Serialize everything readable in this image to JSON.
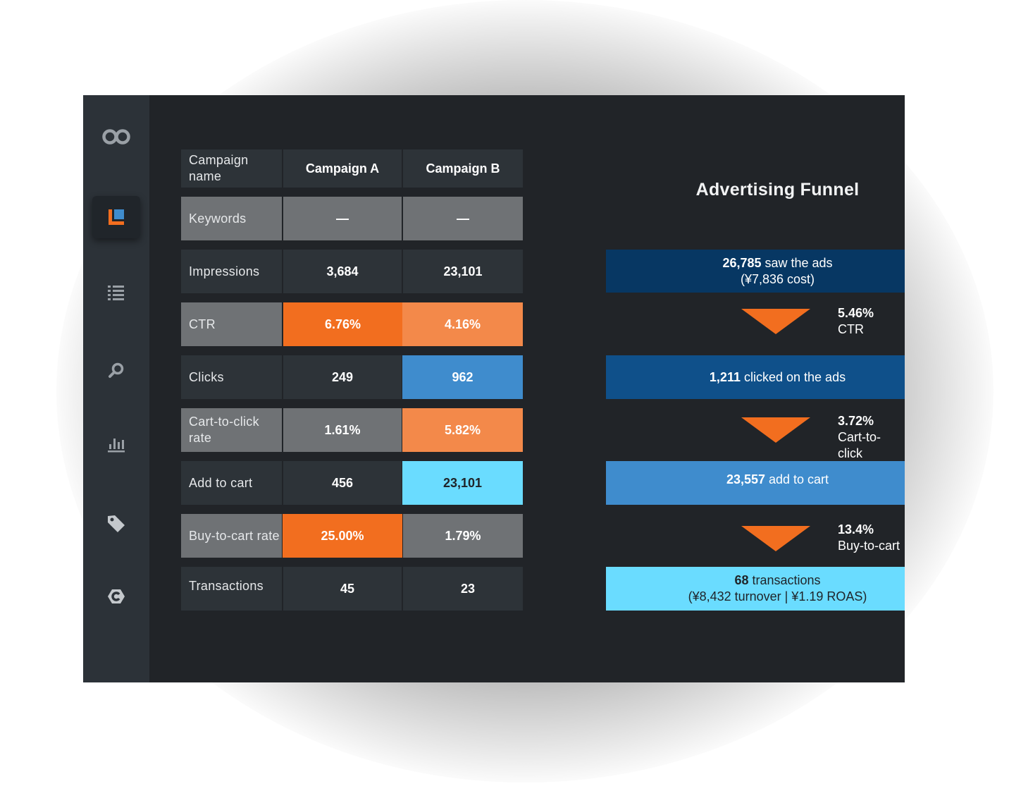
{
  "sidebar": {
    "icons": [
      "logo-link-icon",
      "report-icon",
      "list-icon",
      "search-icon",
      "bar-chart-icon",
      "tag-icon",
      "c-logo-icon"
    ]
  },
  "table": {
    "header": {
      "label": "Campaign name",
      "a": "Campaign A",
      "b": "Campaign B"
    },
    "rows": [
      {
        "label": "Keywords",
        "a": "—",
        "b": "—"
      },
      {
        "label": "Impressions",
        "a": "3,684",
        "b": "23,101"
      },
      {
        "label": "CTR",
        "a": "6.76%",
        "b": "4.16%"
      },
      {
        "label": "Clicks",
        "a": "249",
        "b": "962"
      },
      {
        "label": "Cart-to-click rate",
        "a": "1.61%",
        "b": "5.82%"
      },
      {
        "label": "Add to cart",
        "a": "456",
        "b": "23,101"
      },
      {
        "label": "Buy-to-cart rate",
        "a": "25.00%",
        "b": "1.79%"
      },
      {
        "label": "Transactions",
        "a": "45",
        "b": "23"
      }
    ]
  },
  "funnel": {
    "title": "Advertising Funnel",
    "stages": [
      {
        "value": "26,785",
        "text": " saw the ads",
        "sub": "(¥7,836 cost)",
        "color": "#073763"
      },
      {
        "value": "1,211",
        "text": " clicked on the ads",
        "color": "#0f508a"
      },
      {
        "value": "23,557",
        "text": " add to cart",
        "color": "#3f8ccd"
      },
      {
        "value": "68",
        "text": " transactions",
        "sub": "(¥8,432 turnover | ¥1.19 ROAS)",
        "color": "#6adcff"
      }
    ],
    "rates": [
      {
        "pct": "5.46%",
        "name": "CTR"
      },
      {
        "pct": "3.72%",
        "name": "Cart-to-click"
      },
      {
        "pct": "13.4%",
        "name": "Buy-to-cart"
      }
    ]
  },
  "colors": {
    "background": "#212428",
    "sidebar": "#2c3238",
    "orange": "#f26e1f",
    "light_orange": "#f3894a",
    "blue": "#3f8ccd",
    "cyan": "#6adcff",
    "grey": "#6f7275"
  }
}
